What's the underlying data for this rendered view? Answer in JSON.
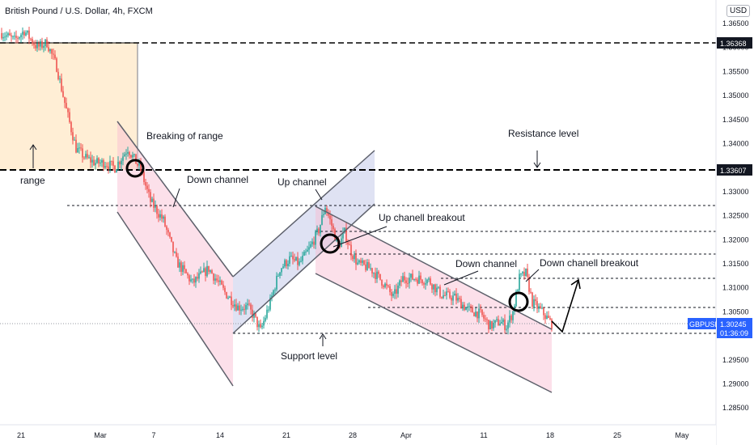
{
  "header": {
    "title": "British Pound / U.S. Dollar, 4h, FXCM",
    "currency_button": "USD"
  },
  "chart_data": {
    "type": "candlestick",
    "symbol": "GBPUSD",
    "interval": "4h",
    "ylim": [
      1.2815,
      1.3682
    ],
    "y_ticks": [
      "1.36500",
      "1.36000",
      "1.35500",
      "1.35000",
      "1.34500",
      "1.34000",
      "1.33500",
      "1.33000",
      "1.32500",
      "1.32000",
      "1.31500",
      "1.31000",
      "1.30500",
      "1.30000",
      "1.29500",
      "1.29000",
      "1.28500"
    ],
    "x_ticks": [
      "21",
      "Mar",
      "7",
      "14",
      "21",
      "28",
      "Apr",
      "11",
      "18",
      "25",
      "May"
    ],
    "last_price": {
      "label": "GBPUSD",
      "value": "1.30245",
      "countdown": "01:36:09"
    },
    "levels": [
      {
        "name": "range-top",
        "value": "1.36368"
      },
      {
        "name": "resistance",
        "value": "1.33607"
      }
    ],
    "annotations": {
      "range": "range",
      "breaking_of_range": "Breaking of range",
      "down_channel_1": "Down channel",
      "up_channel": "Up channel",
      "up_breakout": "Up chanell breakout",
      "down_channel_2": "Down channel",
      "down_breakout": "Down chanell breakout",
      "resistance": "Resistance level",
      "support": "Support level"
    },
    "colors": {
      "up": "#26a69a",
      "down": "#ef5350",
      "last_price": "#2962ff"
    },
    "anchors": [
      [
        0,
        1.363
      ],
      [
        8,
        1.3615
      ],
      [
        14,
        1.3635
      ],
      [
        22,
        1.36
      ],
      [
        28,
        1.361
      ],
      [
        34,
        1.356
      ],
      [
        40,
        1.347
      ],
      [
        46,
        1.339
      ],
      [
        52,
        1.337
      ],
      [
        58,
        1.336
      ],
      [
        64,
        1.336
      ],
      [
        70,
        1.335
      ],
      [
        78,
        1.339
      ],
      [
        86,
        1.3345
      ],
      [
        92,
        1.328
      ],
      [
        100,
        1.324
      ],
      [
        108,
        1.3155
      ],
      [
        118,
        1.311
      ],
      [
        128,
        1.314
      ],
      [
        138,
        1.309
      ],
      [
        146,
        1.306
      ],
      [
        152,
        1.306
      ],
      [
        156,
        1.304
      ],
      [
        160,
        1.301
      ],
      [
        166,
        1.307
      ],
      [
        172,
        1.314
      ],
      [
        178,
        1.316
      ],
      [
        184,
        1.315
      ],
      [
        190,
        1.318
      ],
      [
        196,
        1.322
      ],
      [
        200,
        1.327
      ],
      [
        204,
        1.323
      ],
      [
        208,
        1.3185
      ],
      [
        212,
        1.3215
      ],
      [
        216,
        1.3175
      ],
      [
        220,
        1.315
      ],
      [
        228,
        1.314
      ],
      [
        236,
        1.311
      ],
      [
        242,
        1.308
      ],
      [
        248,
        1.312
      ],
      [
        256,
        1.312
      ],
      [
        264,
        1.3115
      ],
      [
        272,
        1.3085
      ],
      [
        280,
        1.308
      ],
      [
        288,
        1.3055
      ],
      [
        296,
        1.3045
      ],
      [
        302,
        1.302
      ],
      [
        308,
        1.303
      ],
      [
        312,
        1.302
      ],
      [
        316,
        1.305
      ],
      [
        320,
        1.312
      ],
      [
        324,
        1.313
      ],
      [
        328,
        1.307
      ],
      [
        334,
        1.305
      ],
      [
        340,
        1.3025
      ]
    ]
  }
}
